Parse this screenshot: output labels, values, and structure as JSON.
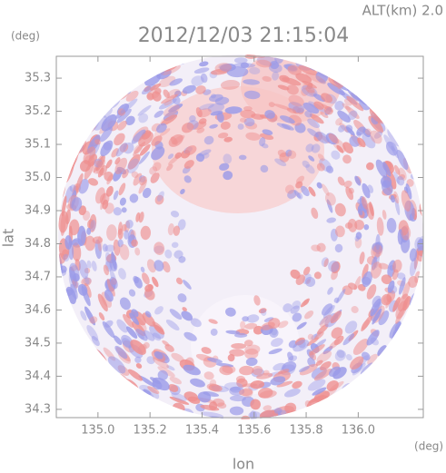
{
  "map": {
    "title": "2012/12/03 21:15:04",
    "altitude_label": "ALT(km) 2.0",
    "y_unit": "(deg)",
    "x_unit": "(deg)",
    "xlabel": "lon",
    "ylabel": "lat",
    "xlim": [
      134.84,
      136.25
    ],
    "ylim": [
      34.275,
      35.366
    ],
    "xticks": [
      {
        "value": 135.0,
        "label": "135.0"
      },
      135.2,
      135.4,
      135.6,
      135.8,
      {
        "value": 136.0,
        "label": "136.0"
      }
    ],
    "yticks": [
      34.3,
      34.4,
      34.5,
      34.6,
      34.7,
      34.8,
      34.9,
      {
        "value": 35.0,
        "label": "35.0"
      },
      35.1,
      35.2,
      35.3
    ]
  }
}
